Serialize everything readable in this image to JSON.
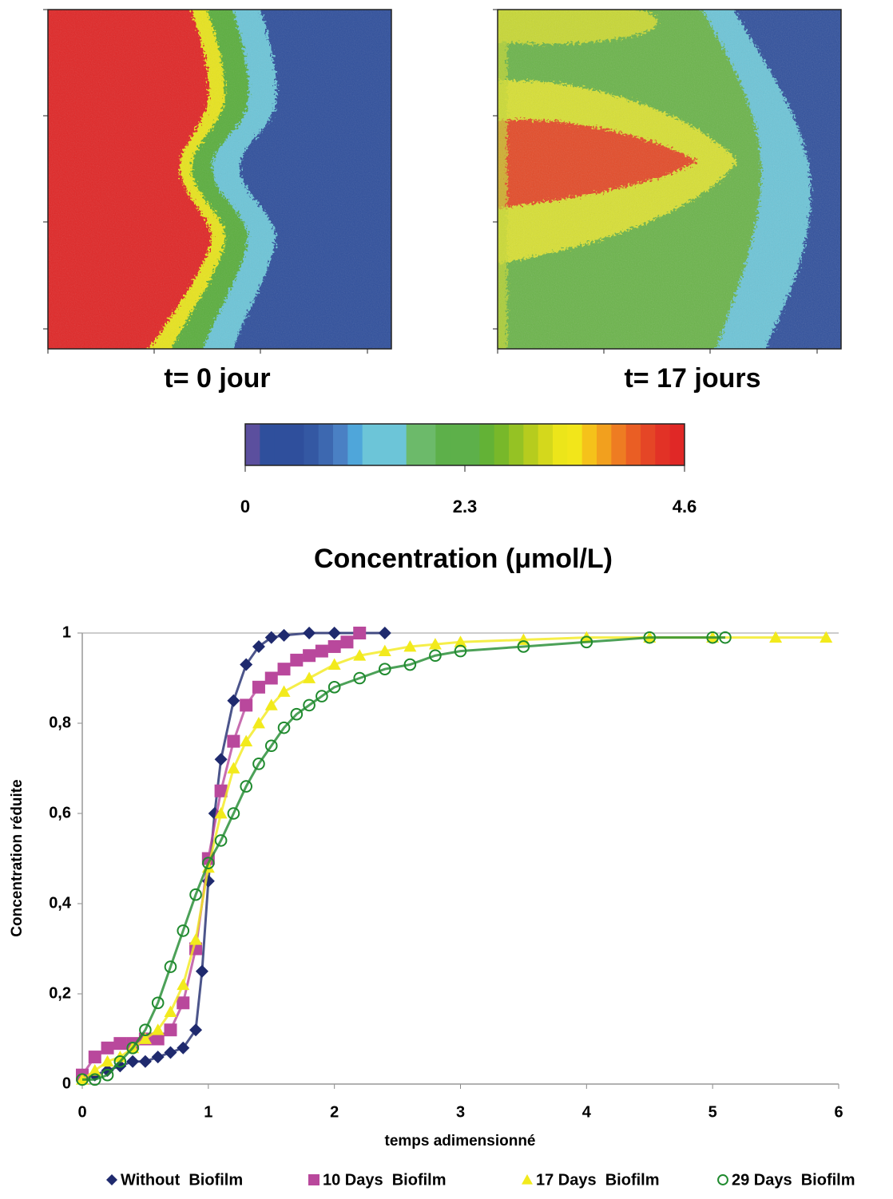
{
  "chart_data": [
    {
      "type": "heatmap",
      "panels": [
        {
          "title": "t= 0 jour"
        },
        {
          "title": "t= 17 jours"
        }
      ],
      "colorbar": {
        "label": "Concentration (μmol/L)",
        "clim": [
          0,
          4.6
        ],
        "ticks": [
          0,
          2.3,
          4.6
        ],
        "colors": [
          "#5b4f9e",
          "#2f4f9c",
          "#2f4f9c",
          "#2f4f9c",
          "#3458a3",
          "#3d68b0",
          "#4a80c4",
          "#4fa6da",
          "#6cc5d8",
          "#6cc5d8",
          "#6cc5d8",
          "#6cba6a",
          "#6cba6a",
          "#5db04a",
          "#5db04a",
          "#5db04a",
          "#63b236",
          "#78b82a",
          "#95c224",
          "#b6cc1e",
          "#d4d81c",
          "#ece51a",
          "#f2e61a",
          "#f5c21a",
          "#f2a01e",
          "#ee7c22",
          "#ea5e24",
          "#e54626",
          "#e23226",
          "#e02826"
        ]
      }
    },
    {
      "type": "scatter",
      "xlabel": "temps adimensionné",
      "ylabel": "Concentration réduite",
      "xlim": [
        0,
        6
      ],
      "ylim": [
        0,
        1
      ],
      "xticks": [
        0,
        1,
        2,
        3,
        4,
        5,
        6
      ],
      "yticks": [
        0,
        {
          "value": 0.2,
          "label": "0,2"
        },
        {
          "value": 0.4,
          "label": "0,4"
        },
        {
          "value": 0.6,
          "label": "0,6"
        },
        {
          "value": 0.8,
          "label": "0,8"
        },
        1
      ],
      "series": [
        {
          "name": "Without  Biofilm",
          "color": "#1f2a6e",
          "marker": "diamond",
          "x": [
            0,
            0.1,
            0.2,
            0.3,
            0.4,
            0.5,
            0.6,
            0.7,
            0.8,
            0.9,
            0.95,
            1.0,
            1.05,
            1.1,
            1.2,
            1.3,
            1.4,
            1.5,
            1.6,
            1.8,
            2.0,
            2.2,
            2.4
          ],
          "values": [
            0.01,
            0.02,
            0.03,
            0.04,
            0.05,
            0.05,
            0.06,
            0.07,
            0.08,
            0.12,
            0.25,
            0.45,
            0.6,
            0.72,
            0.85,
            0.93,
            0.97,
            0.99,
            0.995,
            1,
            1,
            1,
            1
          ]
        },
        {
          "name": "10 Days  Biofilm",
          "color": "#b9489c",
          "marker": "square",
          "x": [
            0,
            0.1,
            0.2,
            0.3,
            0.4,
            0.5,
            0.6,
            0.7,
            0.8,
            0.9,
            1.0,
            1.1,
            1.2,
            1.3,
            1.4,
            1.5,
            1.6,
            1.7,
            1.8,
            1.9,
            2.0,
            2.1,
            2.2
          ],
          "values": [
            0.02,
            0.06,
            0.08,
            0.09,
            0.09,
            0.1,
            0.1,
            0.12,
            0.18,
            0.3,
            0.5,
            0.65,
            0.76,
            0.84,
            0.88,
            0.9,
            0.92,
            0.94,
            0.95,
            0.96,
            0.97,
            0.98,
            1
          ]
        },
        {
          "name": "17 Days  Biofilm",
          "color": "#f2ea1c",
          "marker": "triangle",
          "x": [
            0,
            0.1,
            0.2,
            0.3,
            0.4,
            0.5,
            0.6,
            0.7,
            0.8,
            0.9,
            1.0,
            1.1,
            1.2,
            1.3,
            1.4,
            1.5,
            1.6,
            1.8,
            2.0,
            2.2,
            2.4,
            2.6,
            2.8,
            3.0,
            3.5,
            4.0,
            4.5,
            5.0,
            5.5,
            5.9
          ],
          "values": [
            0.01,
            0.03,
            0.05,
            0.06,
            0.08,
            0.1,
            0.12,
            0.16,
            0.22,
            0.32,
            0.48,
            0.6,
            0.7,
            0.76,
            0.8,
            0.84,
            0.87,
            0.9,
            0.93,
            0.95,
            0.96,
            0.97,
            0.975,
            0.98,
            0.985,
            0.99,
            0.99,
            0.99,
            0.99,
            0.99
          ]
        },
        {
          "name": "29 Days  Biofilm",
          "color": "#1f8a2e",
          "marker": "circle",
          "x": [
            0,
            0.1,
            0.2,
            0.3,
            0.4,
            0.5,
            0.6,
            0.7,
            0.8,
            0.9,
            1.0,
            1.1,
            1.2,
            1.3,
            1.4,
            1.5,
            1.6,
            1.7,
            1.8,
            1.9,
            2.0,
            2.2,
            2.4,
            2.6,
            2.8,
            3.0,
            3.5,
            4.0,
            4.5,
            5.0,
            5.1
          ],
          "values": [
            0.01,
            0.01,
            0.02,
            0.05,
            0.08,
            0.12,
            0.18,
            0.26,
            0.34,
            0.42,
            0.49,
            0.54,
            0.6,
            0.66,
            0.71,
            0.75,
            0.79,
            0.82,
            0.84,
            0.86,
            0.88,
            0.9,
            0.92,
            0.93,
            0.95,
            0.96,
            0.97,
            0.98,
            0.99,
            0.99,
            0.99
          ]
        }
      ]
    }
  ]
}
